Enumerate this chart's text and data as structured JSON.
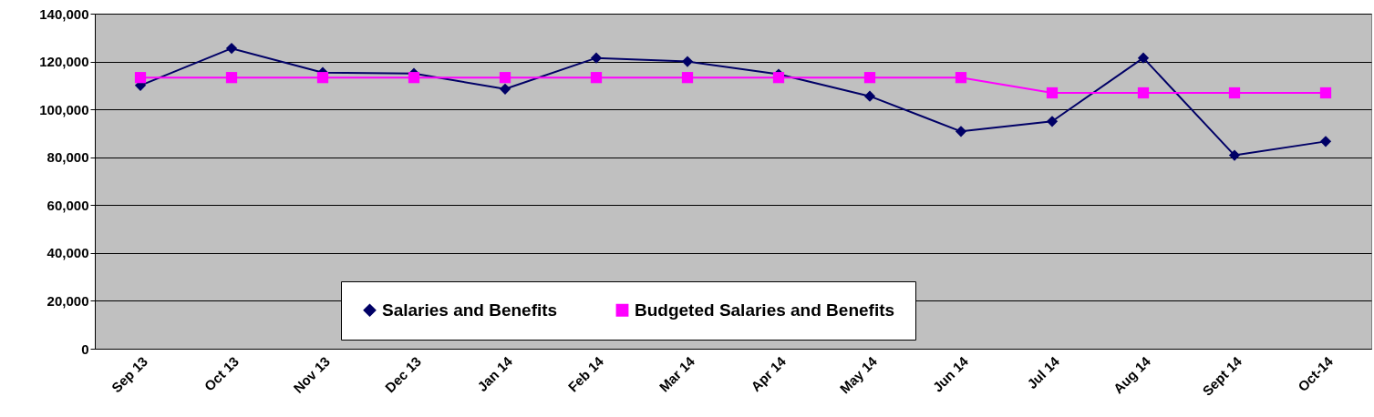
{
  "chart_data": {
    "type": "line",
    "categories": [
      "Sep 13",
      "Oct 13",
      "Nov 13",
      "Dec 13",
      "Jan 14",
      "Feb 14",
      "Mar 14",
      "Apr 14",
      "May 14",
      "Jun 14",
      "Jul 14",
      "Aug 14",
      "Sept 14",
      "Oct-14"
    ],
    "series": [
      {
        "name": "Salaries and Benefits",
        "color": "#000066",
        "marker": "diamond",
        "values": [
          110000,
          125500,
          115400,
          115000,
          108500,
          121500,
          120000,
          114700,
          105500,
          90800,
          95000,
          121500,
          80800,
          86600
        ]
      },
      {
        "name": "Budgeted Salaries and Benefits",
        "color": "#ff00ff",
        "marker": "square",
        "values": [
          113300,
          113300,
          113300,
          113300,
          113300,
          113300,
          113300,
          113300,
          113300,
          113300,
          106900,
          106900,
          106900,
          106900
        ]
      }
    ],
    "ylim": [
      0,
      140000
    ],
    "yticks": [
      0,
      {
        "value": 20000,
        "label": "20,000"
      },
      {
        "value": 40000,
        "label": "40,000"
      },
      {
        "value": 60000,
        "label": "60,000"
      },
      {
        "value": 80000,
        "label": "80,000"
      },
      {
        "value": 100000,
        "label": "100,000"
      },
      {
        "value": 120000,
        "label": "120,000"
      },
      {
        "value": 140000,
        "label": "140,000"
      }
    ],
    "grid": "y",
    "legend": "bottom"
  }
}
